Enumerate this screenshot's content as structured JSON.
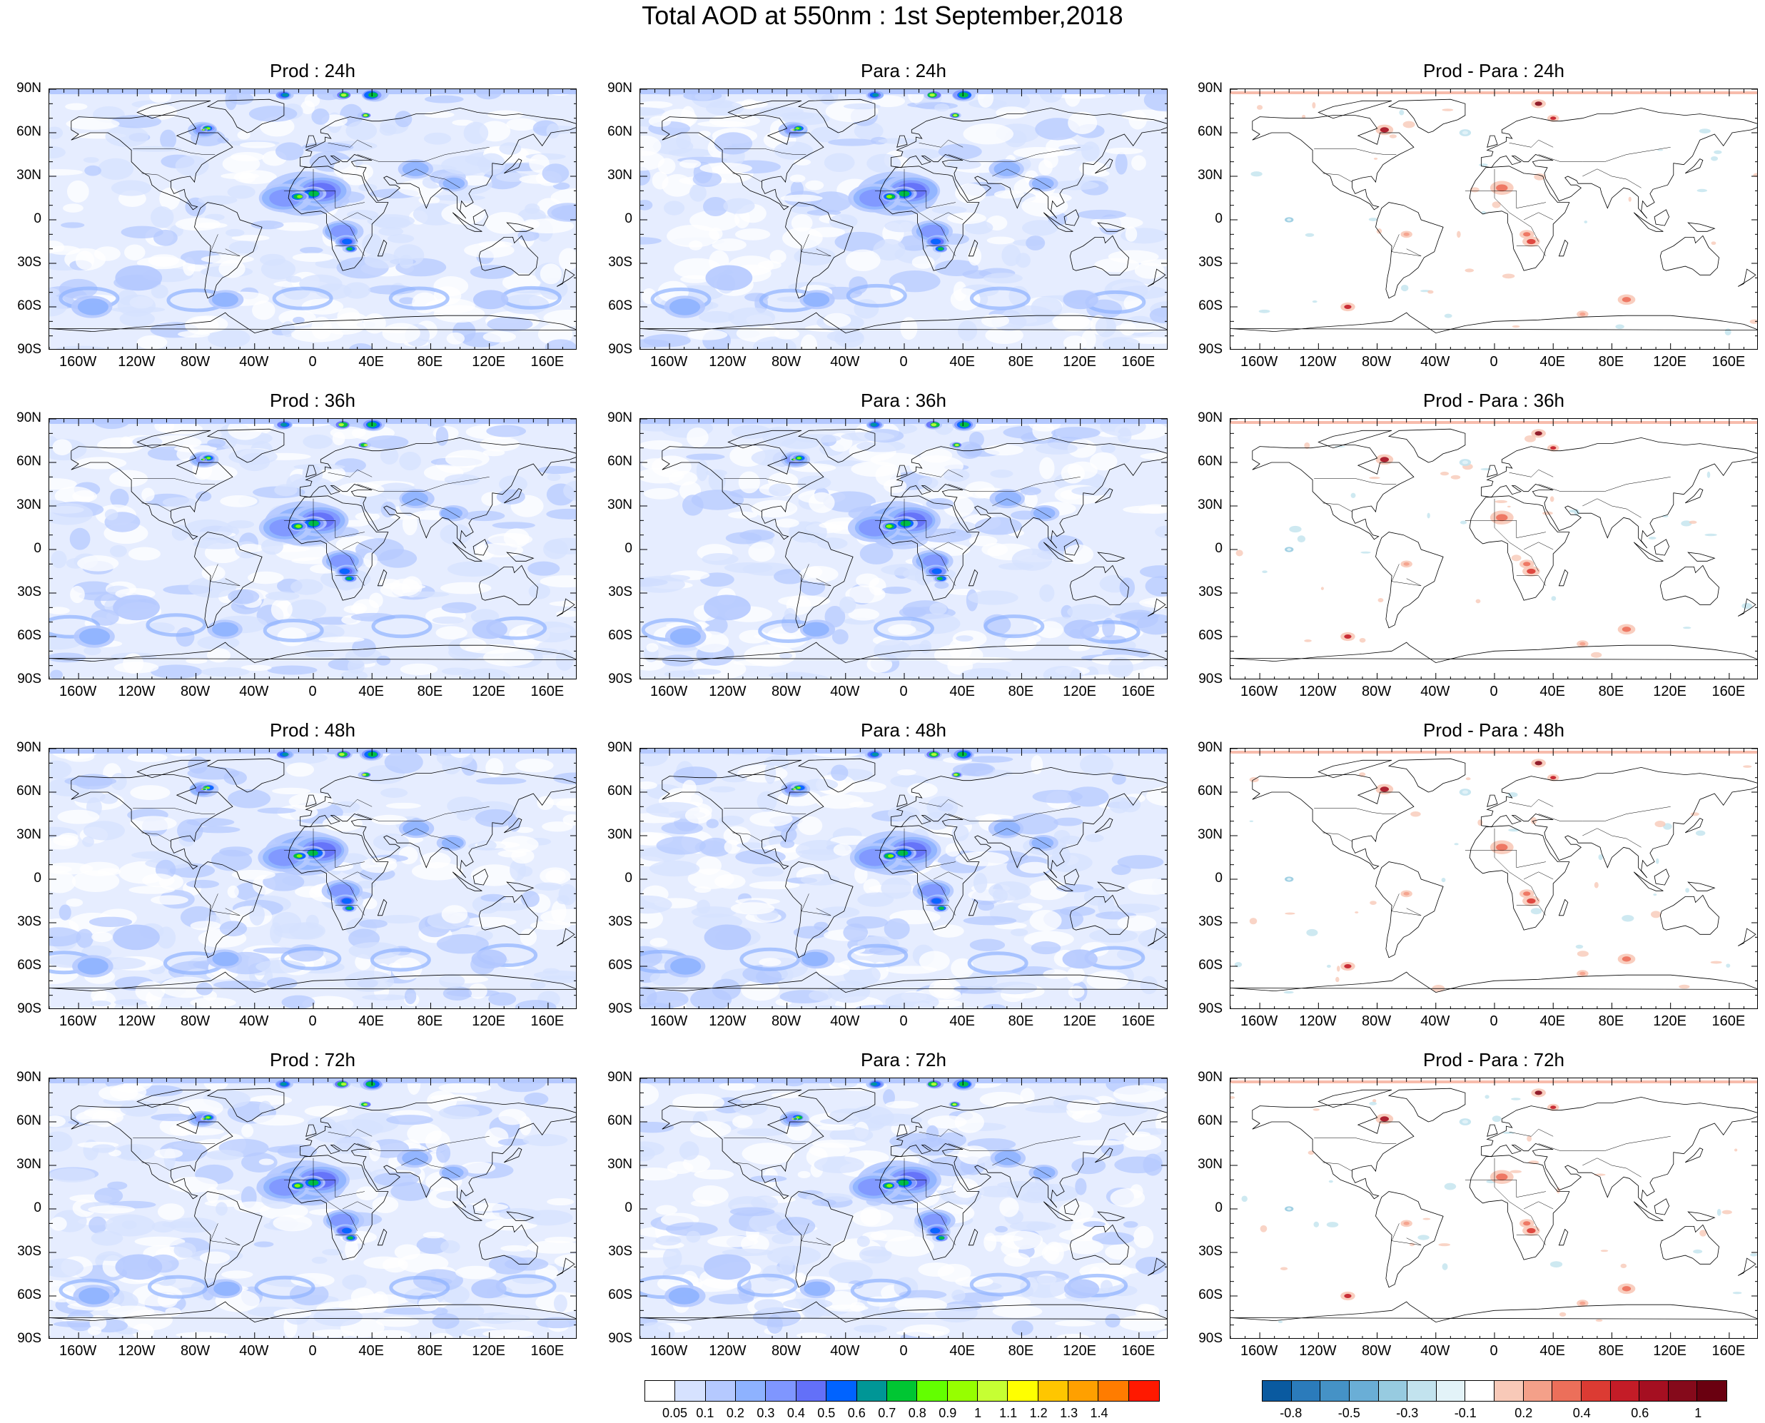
{
  "title": "Total AOD at 550nm : 1st September,2018",
  "lat_labels": [
    "90N",
    "60N",
    "30N",
    "0",
    "30S",
    "60S",
    "90S"
  ],
  "lon_labels": [
    "160W",
    "120W",
    "80W",
    "40W",
    "0",
    "40E",
    "80E",
    "120E",
    "160E"
  ],
  "panels": [
    {
      "title": "Prod : 24h",
      "kind": "aod",
      "hour": 24
    },
    {
      "title": "Para : 24h",
      "kind": "aod",
      "hour": 24
    },
    {
      "title": "Prod - Para : 24h",
      "kind": "diff",
      "hour": 24
    },
    {
      "title": "Prod : 36h",
      "kind": "aod",
      "hour": 36
    },
    {
      "title": "Para : 36h",
      "kind": "aod",
      "hour": 36
    },
    {
      "title": "Prod - Para : 36h",
      "kind": "diff",
      "hour": 36
    },
    {
      "title": "Prod : 48h",
      "kind": "aod",
      "hour": 48
    },
    {
      "title": "Para : 48h",
      "kind": "aod",
      "hour": 48
    },
    {
      "title": "Prod - Para : 48h",
      "kind": "diff",
      "hour": 48
    },
    {
      "title": "Prod : 72h",
      "kind": "aod",
      "hour": 72
    },
    {
      "title": "Para : 72h",
      "kind": "aod",
      "hour": 72
    },
    {
      "title": "Prod - Para : 72h",
      "kind": "diff",
      "hour": 72
    }
  ],
  "aod_colorbar": {
    "labels": [
      "0.05",
      "0.1",
      "0.2",
      "0.3",
      "0.4",
      "0.5",
      "0.6",
      "0.7",
      "0.8",
      "0.9",
      "1",
      "1.1",
      "1.2",
      "1.3",
      "1.4"
    ],
    "colors": [
      "#ffffff",
      "#d6e2ff",
      "#b5c9ff",
      "#8eb2ff",
      "#7f96ff",
      "#6370f8",
      "#0063ff",
      "#009696",
      "#00c633",
      "#63ff00",
      "#96ff00",
      "#c6ff33",
      "#ffff00",
      "#ffc600",
      "#ffa000",
      "#ff7c00",
      "#ff1900"
    ]
  },
  "diff_colorbar": {
    "labels": [
      "-0.8",
      "-0.5",
      "-0.3",
      "-0.1",
      "0.2",
      "0.4",
      "0.6",
      "1"
    ],
    "colors": [
      "#0a5aa0",
      "#2b7bbb",
      "#4592c6",
      "#6aaed6",
      "#97cbe0",
      "#c2e3ee",
      "#e3f3f8",
      "#ffffff",
      "#f8c9b8",
      "#f4a089",
      "#ec6f5a",
      "#dc3b33",
      "#c41c27",
      "#a50f21",
      "#850a1b",
      "#6a0010"
    ]
  }
}
